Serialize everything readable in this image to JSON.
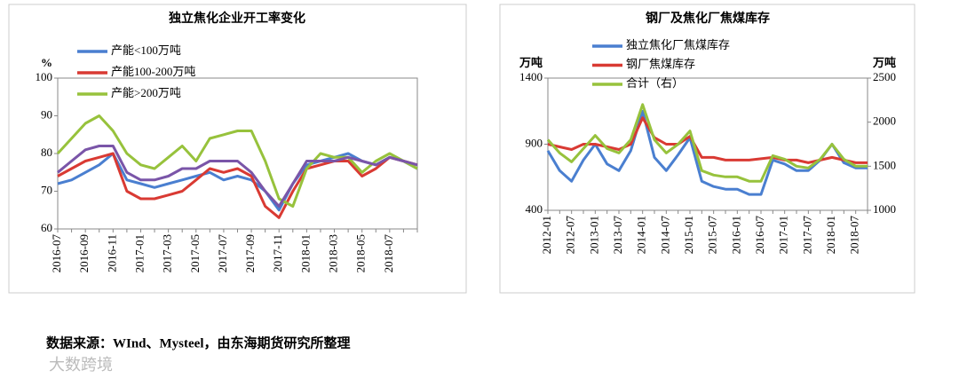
{
  "chart_data": [
    {
      "type": "line",
      "title": "独立焦化企业开工率变化",
      "y_label": "%",
      "categories": [
        "2016-07",
        null,
        "2016-09",
        null,
        "2016-11",
        null,
        "2017-01",
        null,
        "2017-03",
        null,
        "2017-05",
        null,
        "2017-07",
        null,
        "2017-09",
        null,
        "2017-11",
        null,
        "2018-01",
        null,
        "2018-03",
        null,
        "2018-05",
        null,
        "2018-07",
        null,
        null
      ],
      "series": [
        {
          "name": "产能<100万吨",
          "color": "#4a7fd0",
          "values": [
            72,
            73,
            75,
            77,
            80,
            73,
            72,
            71,
            72,
            73,
            74,
            75,
            73,
            74,
            73,
            70,
            65,
            72,
            77,
            78,
            79,
            80,
            78,
            77,
            79,
            78,
            76
          ]
        },
        {
          "name": "产能100-200万吨",
          "color": "#d93a33",
          "values": [
            74,
            76,
            78,
            79,
            80,
            70,
            68,
            68,
            69,
            70,
            73,
            76,
            75,
            76,
            74,
            66,
            63,
            70,
            76,
            77,
            78,
            78,
            74,
            76,
            79,
            78,
            77
          ]
        },
        {
          "name": "产能>200万吨",
          "color": "#97c23c",
          "values": [
            80,
            84,
            88,
            90,
            86,
            80,
            77,
            76,
            79,
            82,
            78,
            84,
            85,
            86,
            86,
            78,
            68,
            66,
            76,
            80,
            79,
            79,
            75,
            78,
            80,
            78,
            76
          ]
        },
        {
          "color": "#7a55a8",
          "values": [
            75,
            78,
            81,
            82,
            82,
            75,
            73,
            73,
            74,
            76,
            76,
            78,
            78,
            78,
            75,
            70,
            66,
            72,
            78,
            78,
            78,
            79,
            78,
            77,
            79,
            78,
            77
          ]
        }
      ],
      "ylim": [
        60,
        100
      ],
      "yticks": [
        60,
        70,
        80,
        90,
        100
      ]
    },
    {
      "type": "line",
      "title": "钢厂及焦化厂焦煤库存",
      "y_label": "万吨",
      "y2_label": "万吨",
      "categories": [
        "2012-01",
        null,
        "2012-07",
        null,
        "2013-01",
        null,
        "2013-07",
        null,
        "2014-01",
        null,
        "2014-07",
        null,
        "2015-01",
        null,
        "2015-07",
        null,
        "2016-01",
        null,
        "2016-07",
        null,
        "2017-01",
        null,
        "2017-07",
        null,
        "2018-01",
        null,
        "2018-07",
        null
      ],
      "series": [
        {
          "name": "独立焦化厂焦煤库存",
          "color": "#4a7fd0",
          "values": [
            850,
            700,
            620,
            780,
            900,
            750,
            700,
            850,
            1150,
            800,
            700,
            820,
            950,
            620,
            580,
            560,
            560,
            520,
            520,
            780,
            750,
            700,
            700,
            780,
            900,
            760,
            720,
            720
          ]
        },
        {
          "name": "钢厂焦煤库存",
          "color": "#d93a33",
          "values": [
            900,
            880,
            860,
            900,
            900,
            880,
            860,
            900,
            1100,
            950,
            900,
            900,
            960,
            800,
            800,
            780,
            780,
            780,
            790,
            800,
            780,
            780,
            760,
            780,
            800,
            780,
            760,
            760
          ]
        },
        {
          "name": "合计（右）",
          "color": "#97c23c",
          "axis": "y2",
          "values": [
            1800,
            1650,
            1550,
            1700,
            1850,
            1700,
            1650,
            1800,
            2200,
            1800,
            1650,
            1750,
            1900,
            1450,
            1400,
            1380,
            1380,
            1330,
            1330,
            1620,
            1580,
            1500,
            1480,
            1580,
            1750,
            1580,
            1500,
            1500
          ]
        }
      ],
      "ylim": [
        400,
        1400
      ],
      "yticks": [
        400,
        900,
        1400
      ],
      "y2lim": [
        1000,
        2500
      ],
      "y2ticks": [
        1000,
        1500,
        2000,
        2500
      ]
    }
  ],
  "source": "数据来源：WInd、Mysteel，由东海期货研究所整理",
  "watermark": "大数跨境"
}
